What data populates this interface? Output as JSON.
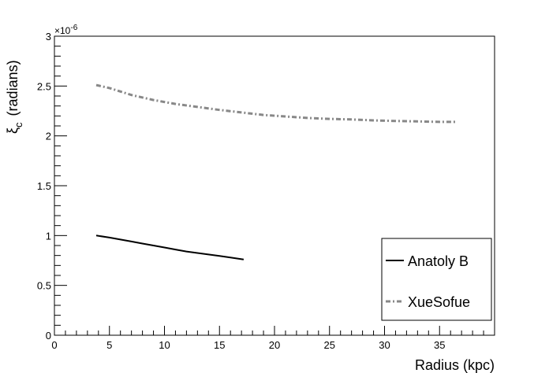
{
  "chart_data": {
    "type": "line",
    "title": "",
    "xlabel": "Radius (kpc)",
    "ylabel_main": "ξ",
    "ylabel_sub": "c",
    "ylabel_unit": "(radians)",
    "xlim": [
      0,
      40
    ],
    "ylim": [
      0,
      3
    ],
    "y_multiplier": "×10",
    "y_multiplier_exp": "-6",
    "x_ticks": [
      0,
      5,
      10,
      15,
      20,
      25,
      30,
      35
    ],
    "x_tick_labels": [
      "0",
      "5",
      "10",
      "15",
      "20",
      "25",
      "30",
      "35"
    ],
    "y_ticks": [
      0,
      0.5,
      1,
      1.5,
      2,
      2.5,
      3
    ],
    "y_tick_labels": [
      "0",
      "0.5",
      "1",
      "1.5",
      "2",
      "2.5",
      "3"
    ],
    "grid": false,
    "legend_position": "bottom-right",
    "series": [
      {
        "name": "Anatoly B",
        "color": "#000000",
        "style": "solid",
        "x": [
          3.8,
          5,
          6,
          7,
          8,
          9,
          10,
          11,
          12,
          13,
          14,
          15,
          16,
          17.2
        ],
        "y": [
          1.0,
          0.98,
          0.96,
          0.94,
          0.92,
          0.9,
          0.88,
          0.86,
          0.84,
          0.825,
          0.81,
          0.795,
          0.78,
          0.76
        ]
      },
      {
        "name": "XueSofue",
        "color": "#888888",
        "style": "dashdot",
        "x": [
          3.8,
          5,
          7,
          9,
          11,
          13,
          15,
          17,
          19,
          21,
          23,
          25,
          27,
          29,
          31,
          33,
          35,
          36.5
        ],
        "y": [
          2.51,
          2.48,
          2.41,
          2.36,
          2.32,
          2.29,
          2.26,
          2.235,
          2.21,
          2.195,
          2.18,
          2.17,
          2.165,
          2.155,
          2.15,
          2.145,
          2.14,
          2.14
        ]
      }
    ]
  }
}
